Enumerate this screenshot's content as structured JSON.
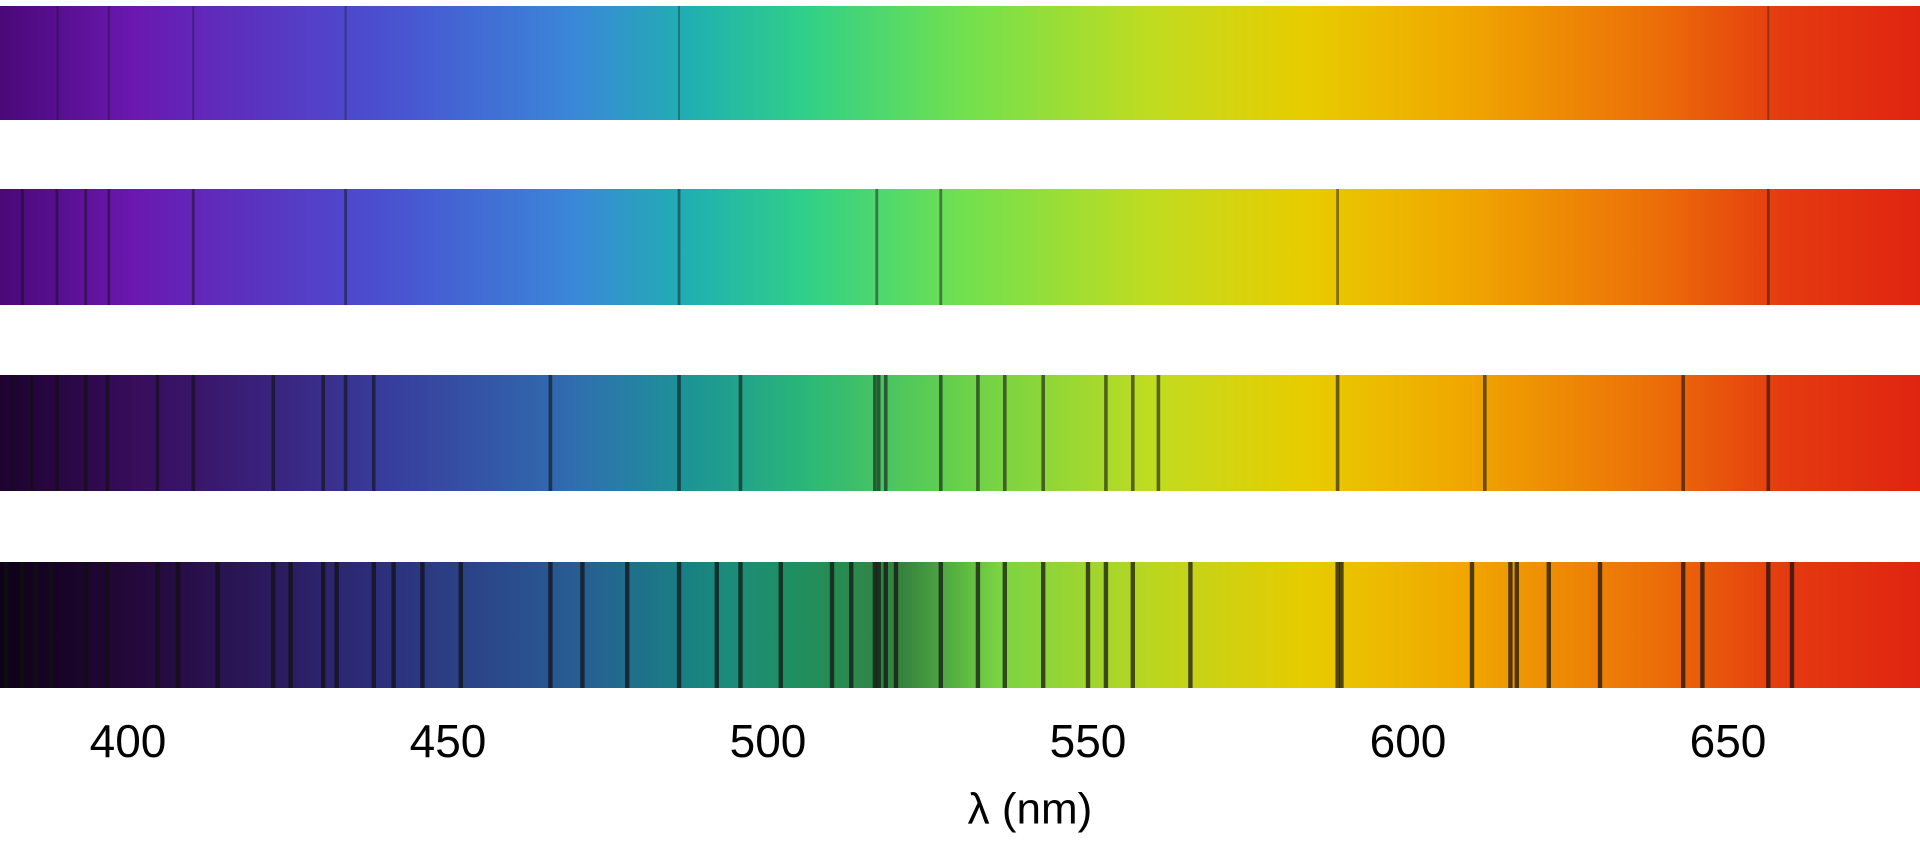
{
  "chart_data": {
    "type": "spectrum",
    "xlabel": "λ  (nm)",
    "xlim": [
      380,
      680
    ],
    "xticks": [
      400,
      450,
      500,
      550,
      600,
      650
    ],
    "series": [
      {
        "values": [
          389,
          397,
          410.2,
          434,
          486.1,
          656.3
        ]
      },
      {
        "values": [
          383.5,
          388.9,
          393.4,
          397,
          410.2,
          434,
          486.1,
          517,
          527,
          589,
          656.3
        ]
      },
      {
        "values": [
          382,
          385,
          388.9,
          393.4,
          396.8,
          404.6,
          410.2,
          422.7,
          430.5,
          434,
          438.4,
          466,
          486.1,
          495.7,
          516.7,
          517.3,
          518.4,
          527,
          532.8,
          537,
          543,
          552.8,
          557,
          561,
          589,
          612,
          643,
          656.3
        ]
      },
      {
        "values": [
          381,
          383.5,
          385.6,
          388,
          393.4,
          396.8,
          404.6,
          407.8,
          414,
          422.7,
          425.4,
          430.5,
          432.6,
          438.4,
          441.5,
          446,
          452,
          466,
          471,
          478,
          486.1,
          492,
          495.7,
          502,
          510,
          513,
          516.7,
          517.3,
          518.4,
          520,
          527,
          532.8,
          537,
          543,
          550,
          552.8,
          557,
          566,
          589,
          589.6,
          610,
          616,
          617,
          622,
          630,
          643,
          646,
          656.3,
          660
        ]
      }
    ]
  }
}
